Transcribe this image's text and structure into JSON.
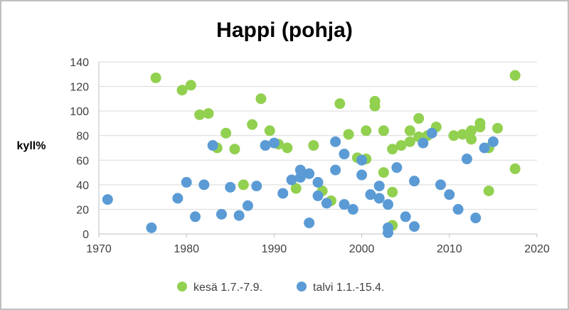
{
  "chart_data": {
    "type": "scatter",
    "title": "Happi (pohja)",
    "xlabel": "",
    "ylabel": "kyll%",
    "xlim": [
      1970,
      2020
    ],
    "ylim": [
      0,
      140
    ],
    "xticks": [
      "1970",
      "1980",
      "1990",
      "2000",
      "2010",
      "2020"
    ],
    "yticks": [
      "0",
      "20",
      "40",
      "60",
      "80",
      "100",
      "120",
      "140"
    ],
    "grid": "horizontal",
    "legend_position": "bottom",
    "series": [
      {
        "name": "kesä 1.7.-7.9.",
        "color": "#92d050",
        "points": [
          [
            1976.5,
            127
          ],
          [
            1979.5,
            117
          ],
          [
            1980.5,
            121
          ],
          [
            1981.5,
            97
          ],
          [
            1982.5,
            98
          ],
          [
            1983.5,
            70
          ],
          [
            1984.5,
            82
          ],
          [
            1985.5,
            69
          ],
          [
            1986.5,
            40
          ],
          [
            1987.5,
            89
          ],
          [
            1988.5,
            110
          ],
          [
            1989.5,
            84
          ],
          [
            1990.5,
            73
          ],
          [
            1991.5,
            70
          ],
          [
            1992.5,
            37
          ],
          [
            1994.5,
            72
          ],
          [
            1995.5,
            35
          ],
          [
            1996.5,
            27
          ],
          [
            1997.5,
            106
          ],
          [
            1998.5,
            81
          ],
          [
            1999.5,
            62
          ],
          [
            2000.5,
            61
          ],
          [
            2000.5,
            84
          ],
          [
            2001.5,
            108
          ],
          [
            2001.5,
            104
          ],
          [
            2002.5,
            84
          ],
          [
            2002.5,
            50
          ],
          [
            2003.5,
            69
          ],
          [
            2003.5,
            34
          ],
          [
            2003.5,
            7
          ],
          [
            2004.5,
            72
          ],
          [
            2005.5,
            75
          ],
          [
            2005.5,
            84
          ],
          [
            2006.5,
            94
          ],
          [
            2006.5,
            79
          ],
          [
            2007.5,
            80
          ],
          [
            2008.5,
            87
          ],
          [
            2010.5,
            80
          ],
          [
            2011.5,
            81
          ],
          [
            2012.5,
            77
          ],
          [
            2012.5,
            84
          ],
          [
            2013.5,
            87
          ],
          [
            2013.5,
            90
          ],
          [
            2014.5,
            70
          ],
          [
            2014.5,
            35
          ],
          [
            2015.5,
            86
          ],
          [
            2017.5,
            129
          ],
          [
            2017.5,
            53
          ]
        ]
      },
      {
        "name": "talvi 1.1.-15.4.",
        "color": "#5b9bd5",
        "points": [
          [
            1971,
            28
          ],
          [
            1976,
            5
          ],
          [
            1979,
            29
          ],
          [
            1980,
            42
          ],
          [
            1981,
            14
          ],
          [
            1982,
            40
          ],
          [
            1983,
            72
          ],
          [
            1984,
            16
          ],
          [
            1985,
            38
          ],
          [
            1986,
            15
          ],
          [
            1987,
            23
          ],
          [
            1988,
            39
          ],
          [
            1989,
            72
          ],
          [
            1990,
            74
          ],
          [
            1991,
            33
          ],
          [
            1992,
            44
          ],
          [
            1993,
            52
          ],
          [
            1993,
            46
          ],
          [
            1994,
            49
          ],
          [
            1994,
            9
          ],
          [
            1995,
            42
          ],
          [
            1995,
            31
          ],
          [
            1996,
            25
          ],
          [
            1997,
            75
          ],
          [
            1997,
            52
          ],
          [
            1998,
            65
          ],
          [
            1998,
            24
          ],
          [
            1999,
            20
          ],
          [
            2000,
            60
          ],
          [
            2000,
            48
          ],
          [
            2001,
            32
          ],
          [
            2002,
            29
          ],
          [
            2002,
            39
          ],
          [
            2003,
            24
          ],
          [
            2003,
            5
          ],
          [
            2003,
            1
          ],
          [
            2004,
            54
          ],
          [
            2005,
            14
          ],
          [
            2006,
            6
          ],
          [
            2006,
            43
          ],
          [
            2007,
            74
          ],
          [
            2008,
            82
          ],
          [
            2009,
            40
          ],
          [
            2010,
            32
          ],
          [
            2011,
            20
          ],
          [
            2012,
            61
          ],
          [
            2013,
            13
          ],
          [
            2014,
            70
          ],
          [
            2015,
            75
          ]
        ]
      }
    ]
  }
}
